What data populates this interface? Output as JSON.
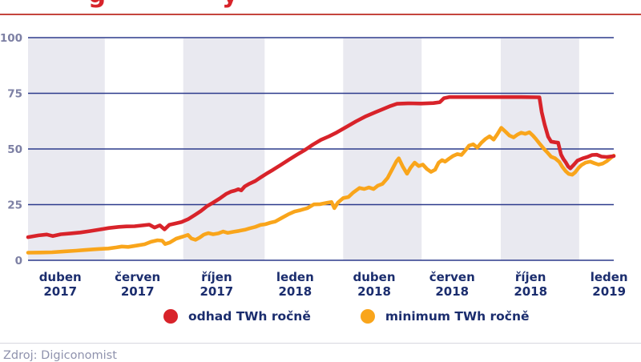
{
  "header": {
    "clipped_title_fragments": [
      {
        "char": "g",
        "x": 110
      },
      {
        "char": "y",
        "x": 277
      }
    ]
  },
  "legend": {
    "items": [
      {
        "label": "odhad TWh ročně",
        "color": "#d8232a"
      },
      {
        "label": "minimum TWh ročně",
        "color": "#f9a51b"
      }
    ]
  },
  "footer": {
    "source": "Zdroj: Digiconomist"
  },
  "colors": {
    "red_line": "#d8232a",
    "orange_line": "#f9a51b",
    "gridline_navy": "#2c3a8c",
    "axis_label_navy": "#1b2d6e",
    "y_tick_gray": "#7d80a4",
    "band_gray": "#e9e9f0",
    "top_rule_red": "#c5453e"
  },
  "chart_data": {
    "type": "line",
    "ylim": [
      0,
      100
    ],
    "y_ticks": [
      0,
      25,
      50,
      75,
      100
    ],
    "grid": "horizontal",
    "legend_position": "bottom",
    "x_ticks": [
      {
        "month": "duben",
        "year": "2017",
        "pos": 0.055
      },
      {
        "month": "červen",
        "year": "2017",
        "pos": 0.187
      },
      {
        "month": "říjen",
        "year": "2017",
        "pos": 0.322
      },
      {
        "month": "leden",
        "year": "2018",
        "pos": 0.456
      },
      {
        "month": "duben",
        "year": "2018",
        "pos": 0.591
      },
      {
        "month": "červen",
        "year": "2018",
        "pos": 0.724
      },
      {
        "month": "říjen",
        "year": "2018",
        "pos": 0.858
      },
      {
        "month": "leden",
        "year": "2019",
        "pos": 0.992
      }
    ],
    "shaded_bands": [
      [
        0.0,
        0.131
      ],
      [
        0.265,
        0.404
      ],
      [
        0.538,
        0.672
      ],
      [
        0.807,
        0.941
      ]
    ],
    "series": [
      {
        "name": "minimum TWh ročně",
        "color": "#f9a51b",
        "points": [
          [
            0.0,
            3.4
          ],
          [
            0.021,
            3.5
          ],
          [
            0.041,
            3.6
          ],
          [
            0.062,
            4.0
          ],
          [
            0.082,
            4.3
          ],
          [
            0.096,
            4.6
          ],
          [
            0.11,
            4.9
          ],
          [
            0.123,
            5.1
          ],
          [
            0.137,
            5.3
          ],
          [
            0.151,
            5.8
          ],
          [
            0.16,
            6.2
          ],
          [
            0.171,
            6.0
          ],
          [
            0.185,
            6.6
          ],
          [
            0.199,
            7.2
          ],
          [
            0.21,
            8.3
          ],
          [
            0.221,
            9.0
          ],
          [
            0.229,
            8.8
          ],
          [
            0.234,
            7.3
          ],
          [
            0.242,
            8.0
          ],
          [
            0.253,
            9.7
          ],
          [
            0.264,
            10.6
          ],
          [
            0.273,
            11.4
          ],
          [
            0.279,
            9.8
          ],
          [
            0.286,
            9.2
          ],
          [
            0.293,
            10.2
          ],
          [
            0.3,
            11.5
          ],
          [
            0.308,
            12.2
          ],
          [
            0.316,
            11.7
          ],
          [
            0.325,
            12.1
          ],
          [
            0.333,
            12.9
          ],
          [
            0.341,
            12.3
          ],
          [
            0.351,
            12.8
          ],
          [
            0.36,
            13.2
          ],
          [
            0.37,
            13.7
          ],
          [
            0.378,
            14.3
          ],
          [
            0.388,
            15.0
          ],
          [
            0.397,
            15.9
          ],
          [
            0.405,
            16.2
          ],
          [
            0.414,
            16.9
          ],
          [
            0.422,
            17.4
          ],
          [
            0.433,
            19.0
          ],
          [
            0.444,
            20.6
          ],
          [
            0.455,
            21.9
          ],
          [
            0.466,
            22.6
          ],
          [
            0.477,
            23.4
          ],
          [
            0.488,
            25.1
          ],
          [
            0.499,
            25.2
          ],
          [
            0.51,
            25.8
          ],
          [
            0.518,
            26.2
          ],
          [
            0.523,
            23.4
          ],
          [
            0.529,
            25.9
          ],
          [
            0.538,
            27.9
          ],
          [
            0.547,
            28.4
          ],
          [
            0.555,
            30.4
          ],
          [
            0.566,
            32.5
          ],
          [
            0.574,
            32.0
          ],
          [
            0.582,
            32.7
          ],
          [
            0.59,
            32.0
          ],
          [
            0.597,
            33.5
          ],
          [
            0.605,
            34.3
          ],
          [
            0.614,
            37.0
          ],
          [
            0.622,
            41.0
          ],
          [
            0.629,
            44.5
          ],
          [
            0.633,
            45.8
          ],
          [
            0.64,
            42.0
          ],
          [
            0.647,
            38.9
          ],
          [
            0.653,
            41.5
          ],
          [
            0.66,
            43.9
          ],
          [
            0.667,
            42.3
          ],
          [
            0.674,
            43.0
          ],
          [
            0.681,
            41.0
          ],
          [
            0.688,
            39.7
          ],
          [
            0.695,
            40.7
          ],
          [
            0.701,
            43.8
          ],
          [
            0.707,
            45.0
          ],
          [
            0.712,
            44.3
          ],
          [
            0.719,
            45.7
          ],
          [
            0.726,
            46.9
          ],
          [
            0.733,
            47.7
          ],
          [
            0.74,
            47.3
          ],
          [
            0.747,
            49.5
          ],
          [
            0.753,
            51.5
          ],
          [
            0.76,
            52.1
          ],
          [
            0.767,
            50.6
          ],
          [
            0.774,
            52.8
          ],
          [
            0.781,
            54.5
          ],
          [
            0.788,
            55.7
          ],
          [
            0.795,
            54.2
          ],
          [
            0.801,
            56.5
          ],
          [
            0.808,
            59.5
          ],
          [
            0.815,
            57.8
          ],
          [
            0.822,
            56.0
          ],
          [
            0.829,
            55.2
          ],
          [
            0.836,
            56.5
          ],
          [
            0.842,
            57.3
          ],
          [
            0.849,
            56.8
          ],
          [
            0.856,
            57.5
          ],
          [
            0.862,
            56.0
          ],
          [
            0.867,
            54.5
          ],
          [
            0.874,
            52.2
          ],
          [
            0.881,
            50.0
          ],
          [
            0.886,
            48.6
          ],
          [
            0.893,
            46.5
          ],
          [
            0.9,
            45.8
          ],
          [
            0.907,
            44.2
          ],
          [
            0.912,
            42.0
          ],
          [
            0.918,
            40.0
          ],
          [
            0.923,
            38.8
          ],
          [
            0.929,
            38.4
          ],
          [
            0.934,
            39.5
          ],
          [
            0.94,
            41.5
          ],
          [
            0.945,
            42.8
          ],
          [
            0.952,
            43.9
          ],
          [
            0.96,
            44.3
          ],
          [
            0.967,
            43.6
          ],
          [
            0.974,
            43.0
          ],
          [
            0.981,
            43.4
          ],
          [
            0.988,
            44.5
          ],
          [
            0.995,
            46.0
          ],
          [
            1.0,
            47.0
          ]
        ]
      },
      {
        "name": "odhad TWh ročně",
        "color": "#d8232a",
        "points": [
          [
            0.0,
            10.4
          ],
          [
            0.018,
            11.2
          ],
          [
            0.032,
            11.6
          ],
          [
            0.042,
            10.9
          ],
          [
            0.056,
            11.7
          ],
          [
            0.073,
            12.1
          ],
          [
            0.089,
            12.5
          ],
          [
            0.105,
            13.1
          ],
          [
            0.122,
            13.8
          ],
          [
            0.138,
            14.5
          ],
          [
            0.155,
            15.0
          ],
          [
            0.168,
            15.2
          ],
          [
            0.182,
            15.3
          ],
          [
            0.196,
            15.7
          ],
          [
            0.207,
            16.0
          ],
          [
            0.216,
            14.7
          ],
          [
            0.225,
            15.7
          ],
          [
            0.233,
            13.9
          ],
          [
            0.241,
            15.9
          ],
          [
            0.251,
            16.5
          ],
          [
            0.262,
            17.2
          ],
          [
            0.273,
            18.4
          ],
          [
            0.284,
            20.2
          ],
          [
            0.295,
            22.1
          ],
          [
            0.305,
            24.2
          ],
          [
            0.316,
            25.9
          ],
          [
            0.327,
            27.7
          ],
          [
            0.338,
            29.8
          ],
          [
            0.347,
            30.9
          ],
          [
            0.353,
            31.3
          ],
          [
            0.359,
            31.9
          ],
          [
            0.364,
            31.4
          ],
          [
            0.37,
            33.2
          ],
          [
            0.378,
            34.4
          ],
          [
            0.388,
            35.6
          ],
          [
            0.397,
            37.2
          ],
          [
            0.407,
            38.9
          ],
          [
            0.418,
            40.6
          ],
          [
            0.432,
            42.9
          ],
          [
            0.445,
            45.1
          ],
          [
            0.459,
            47.4
          ],
          [
            0.473,
            49.6
          ],
          [
            0.486,
            51.9
          ],
          [
            0.5,
            54.1
          ],
          [
            0.514,
            55.7
          ],
          [
            0.527,
            57.4
          ],
          [
            0.544,
            60.0
          ],
          [
            0.56,
            62.4
          ],
          [
            0.577,
            64.7
          ],
          [
            0.593,
            66.5
          ],
          [
            0.605,
            67.8
          ],
          [
            0.619,
            69.3
          ],
          [
            0.63,
            70.3
          ],
          [
            0.651,
            70.5
          ],
          [
            0.671,
            70.4
          ],
          [
            0.692,
            70.6
          ],
          [
            0.703,
            71.0
          ],
          [
            0.71,
            72.8
          ],
          [
            0.719,
            73.3
          ],
          [
            0.76,
            73.3
          ],
          [
            0.801,
            73.3
          ],
          [
            0.842,
            73.3
          ],
          [
            0.873,
            73.2
          ],
          [
            0.877,
            66.5
          ],
          [
            0.882,
            61.0
          ],
          [
            0.888,
            55.5
          ],
          [
            0.893,
            53.3
          ],
          [
            0.9,
            53.0
          ],
          [
            0.905,
            52.8
          ],
          [
            0.91,
            47.5
          ],
          [
            0.914,
            45.5
          ],
          [
            0.918,
            44.0
          ],
          [
            0.922,
            42.2
          ],
          [
            0.926,
            41.3
          ],
          [
            0.932,
            43.0
          ],
          [
            0.938,
            44.8
          ],
          [
            0.947,
            45.8
          ],
          [
            0.955,
            46.4
          ],
          [
            0.963,
            47.3
          ],
          [
            0.971,
            47.4
          ],
          [
            0.979,
            46.6
          ],
          [
            0.988,
            46.4
          ],
          [
            1.0,
            46.8
          ]
        ]
      }
    ]
  }
}
